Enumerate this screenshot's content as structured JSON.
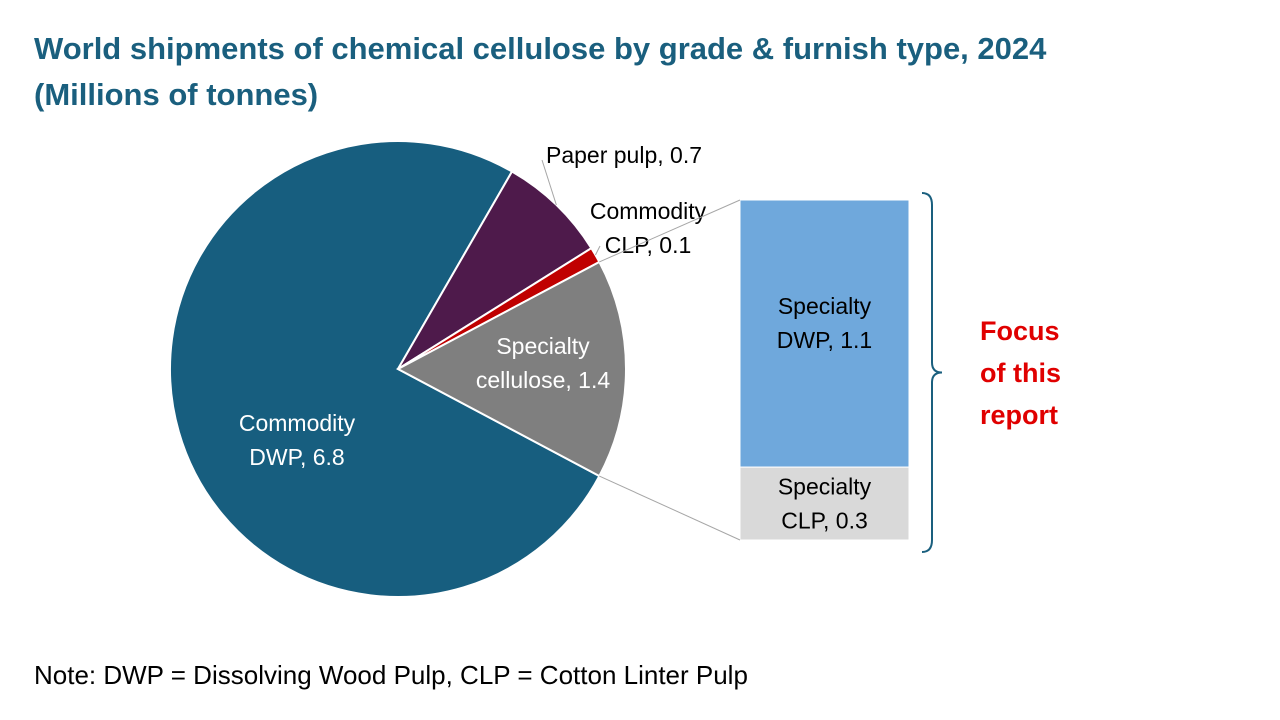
{
  "title_lines": [
    "World shipments of chemical cellulose by grade & furnish type, 2024",
    "(Millions of tonnes)"
  ],
  "note": "Note: DWP = Dissolving Wood Pulp, CLP = Cotton Linter Pulp",
  "focus_lines": [
    "Focus",
    "of this",
    "report"
  ],
  "chart_data": [
    {
      "type": "pie",
      "slices": [
        {
          "label": [
            "Commodity",
            "DWP, 6.8"
          ],
          "value": 6.8,
          "color": "#175e7f",
          "text_color": "#ffffff"
        },
        {
          "label": [
            "Paper pulp, 0.7"
          ],
          "value": 0.7,
          "color": "#4e1a4b",
          "text_color": "#000000"
        },
        {
          "label": [
            "Commodity",
            "CLP, 0.1"
          ],
          "value": 0.1,
          "color": "#c00000",
          "text_color": "#000000"
        },
        {
          "label": [
            "Specialty",
            "cellulose, 1.4"
          ],
          "value": 1.4,
          "color": "#7f7f7f",
          "text_color": "#ffffff"
        }
      ]
    },
    {
      "type": "bar",
      "stacked": true,
      "breakdown_of": "Specialty cellulose, 1.4",
      "segments": [
        {
          "label": [
            "Specialty",
            "DWP, 1.1"
          ],
          "value": 1.1,
          "color": "#6fa8dc",
          "text_color": "#000000"
        },
        {
          "label": [
            "Specialty",
            "CLP, 0.3"
          ],
          "value": 0.3,
          "color": "#d9d9d9",
          "text_color": "#000000"
        }
      ]
    }
  ]
}
